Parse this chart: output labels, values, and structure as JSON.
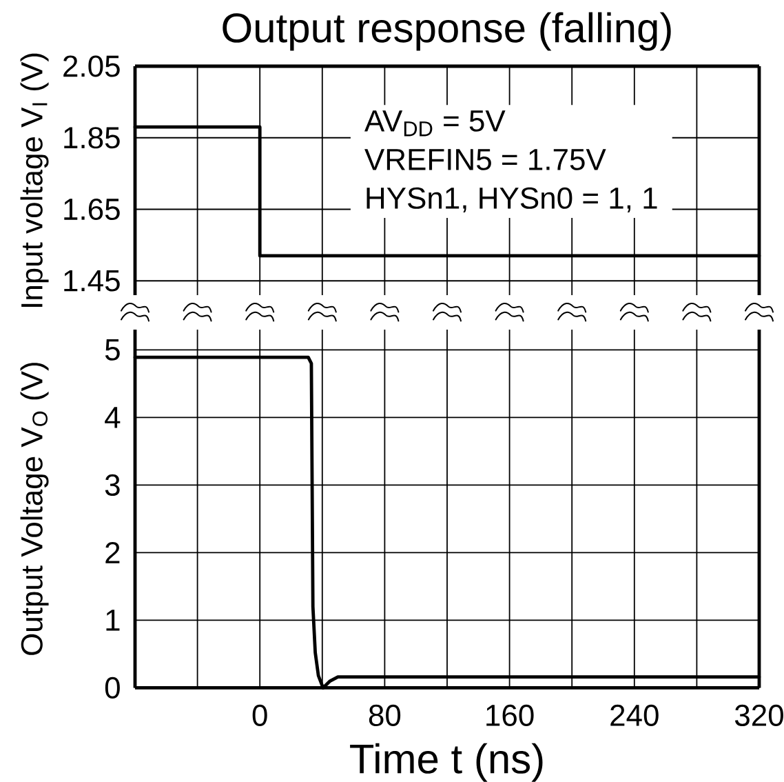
{
  "chart_data": [
    {
      "type": "line",
      "title": "Output response (falling)",
      "ylabel": "Input voltage V$_{I}$ (V)",
      "annotations": [
        "AV$_{DD}$ = 5V",
        "VREFIN5 = 1.75V",
        "HYSn1, HYSn0 = 1, 1"
      ],
      "xlim": [
        -80,
        320
      ],
      "ylim": [
        1.41,
        2.05
      ],
      "xticks": [
        {
          "value": -80,
          "label": null
        },
        {
          "value": -40,
          "label": null
        },
        0,
        {
          "value": 40,
          "label": null
        },
        80,
        {
          "value": 120,
          "label": null
        },
        160,
        {
          "value": 200,
          "label": null
        },
        240,
        {
          "value": 280,
          "label": null
        },
        320
      ],
      "yticks": [
        1.45,
        1.65,
        1.85,
        2.05
      ],
      "grid": true,
      "tick_labels": "y",
      "line_style": "solid",
      "series": [
        {
          "color": "#000000",
          "x": [
            -80,
            0,
            0,
            320
          ],
          "values": [
            1.88,
            1.88,
            1.52,
            1.52
          ]
        }
      ]
    },
    {
      "type": "line",
      "xlabel": "Time t (ns)",
      "ylabel": "Output Voltage V$_{O}$ (V)",
      "xlim": [
        -80,
        320
      ],
      "ylim": [
        0,
        5.3
      ],
      "xticks": [
        {
          "value": -80,
          "label": null
        },
        {
          "value": -40,
          "label": null
        },
        0,
        {
          "value": 40,
          "label": null
        },
        80,
        {
          "value": 120,
          "label": null
        },
        160,
        {
          "value": 200,
          "label": null
        },
        240,
        {
          "value": 280,
          "label": null
        },
        320
      ],
      "yticks": [
        0,
        1,
        2,
        3,
        4,
        5
      ],
      "grid": true,
      "line_style": "solid",
      "series": [
        {
          "color": "#000000",
          "x": [
            -80,
            31,
            33,
            33.5,
            34,
            35.5,
            37.5,
            40.5,
            45,
            50,
            320
          ],
          "values": [
            4.89,
            4.89,
            4.8,
            3,
            1.2,
            0.52,
            0.18,
            0,
            0.1,
            0.16,
            0.16
          ]
        }
      ]
    }
  ]
}
